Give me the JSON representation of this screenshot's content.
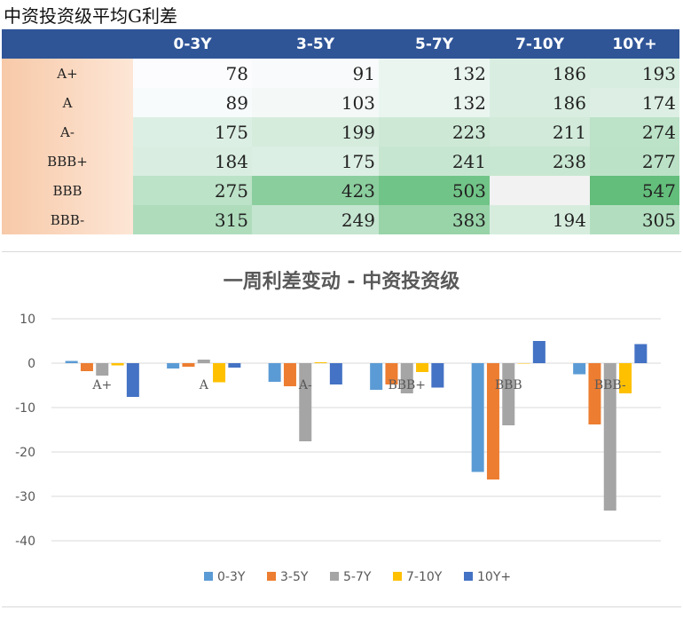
{
  "heading": "中资投资级平均G利差",
  "table": {
    "columns": [
      "0-3Y",
      "3-5Y",
      "5-7Y",
      "7-10Y",
      "10Y+"
    ],
    "rows": [
      {
        "label": "A+",
        "values": [
          78,
          91,
          132,
          186,
          193
        ]
      },
      {
        "label": "A",
        "values": [
          89,
          103,
          132,
          186,
          174
        ]
      },
      {
        "label": "A-",
        "values": [
          175,
          199,
          223,
          211,
          274
        ]
      },
      {
        "label": "BBB+",
        "values": [
          184,
          175,
          241,
          238,
          277
        ]
      },
      {
        "label": "BBB",
        "values": [
          275,
          423,
          503,
          null,
          547
        ]
      },
      {
        "label": "BBB-",
        "values": [
          315,
          249,
          383,
          194,
          305
        ]
      }
    ]
  },
  "chart_data": {
    "type": "bar",
    "title": "一周利差变动 - 中资投资级",
    "categories": [
      "A+",
      "A",
      "A-",
      "BBB+",
      "BBB",
      "BBB-"
    ],
    "series": [
      {
        "name": "0-3Y",
        "color": "#5b9bd5",
        "values": [
          0.5,
          -1.2,
          -4.2,
          -6.0,
          -24.5,
          -2.5
        ]
      },
      {
        "name": "3-5Y",
        "color": "#ed7d31",
        "values": [
          -1.8,
          -0.8,
          -5.2,
          -4.8,
          -26.2,
          -13.8
        ]
      },
      {
        "name": "5-7Y",
        "color": "#a5a5a5",
        "values": [
          -2.8,
          0.8,
          -17.6,
          -6.8,
          -14.0,
          -33.2
        ]
      },
      {
        "name": "7-10Y",
        "color": "#ffc000",
        "values": [
          -0.5,
          -4.3,
          0.2,
          -2.0,
          0,
          -6.8
        ]
      },
      {
        "name": "10Y+",
        "color": "#4472c4",
        "values": [
          -7.6,
          -1.0,
          -4.8,
          -5.5,
          5.0,
          4.3
        ]
      }
    ],
    "ylim": [
      -40,
      10
    ],
    "yticks": [
      10,
      0,
      -10,
      -20,
      -30,
      -40
    ],
    "grid": true,
    "legend": "bottom"
  }
}
